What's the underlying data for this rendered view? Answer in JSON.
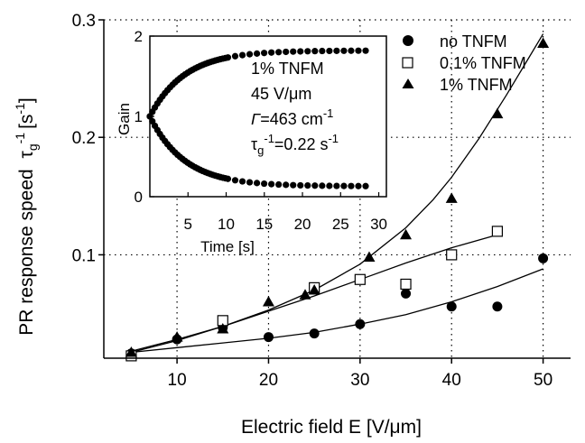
{
  "chart_data": [
    {
      "type": "scatter",
      "xlabel": "Electric field E [V/μm]",
      "ylabel": "PR response speed",
      "ylabel_symbol": "τ",
      "ylabel_sub": "g",
      "ylabel_sup": "-1",
      "ylabel_unit_pre": "[s",
      "ylabel_unit_sup": "-1",
      "ylabel_unit_post": "]",
      "xlim": [
        2,
        53
      ],
      "ylim": [
        0.012,
        0.3
      ],
      "xticks": [
        10,
        20,
        30,
        40,
        50
      ],
      "yticks": [
        0.1,
        0.2,
        0.3
      ],
      "grid": "dotted",
      "legend_position": "top-right",
      "series": [
        {
          "name": "no TNFM",
          "marker": "filled-circle",
          "x": [
            5,
            10,
            15,
            20,
            25,
            30,
            35,
            40,
            45,
            50
          ],
          "y": [
            0.016,
            0.028,
            0.038,
            0.03,
            0.033,
            0.041,
            0.067,
            0.056,
            0.056,
            0.097
          ],
          "fit_x": [
            5,
            10,
            15,
            20,
            25,
            30,
            35,
            40,
            45,
            50
          ],
          "fit_y": [
            0.017,
            0.021,
            0.025,
            0.029,
            0.034,
            0.041,
            0.049,
            0.06,
            0.073,
            0.088
          ]
        },
        {
          "name": "0.1% TNFM",
          "marker": "open-square",
          "x": [
            5,
            15,
            25,
            30,
            35,
            40,
            45
          ],
          "y": [
            0.014,
            0.044,
            0.072,
            0.079,
            0.075,
            0.1,
            0.12
          ],
          "fit_x": [
            5,
            10,
            15,
            20,
            25,
            30,
            35,
            40,
            45
          ],
          "fit_y": [
            0.018,
            0.028,
            0.039,
            0.052,
            0.065,
            0.079,
            0.093,
            0.106,
            0.117
          ]
        },
        {
          "name": "1% TNFM",
          "marker": "filled-triangle",
          "x": [
            5,
            10,
            15,
            20,
            24,
            25,
            31,
            35,
            40,
            45,
            50
          ],
          "y": [
            0.017,
            0.03,
            0.037,
            0.06,
            0.066,
            0.07,
            0.098,
            0.117,
            0.148,
            0.22,
            0.28
          ],
          "fit_x": [
            5,
            10,
            15,
            20,
            25,
            30,
            35,
            38,
            40,
            43,
            46,
            48,
            50
          ],
          "fit_y": [
            0.017,
            0.027,
            0.039,
            0.053,
            0.07,
            0.092,
            0.123,
            0.147,
            0.166,
            0.199,
            0.236,
            0.262,
            0.288
          ]
        }
      ]
    },
    {
      "type": "scatter",
      "inset": true,
      "xlabel": "Time [s]",
      "ylabel": "Gain",
      "xlim": [
        0,
        31
      ],
      "ylim": [
        0,
        2
      ],
      "xticks": [
        5,
        10,
        15,
        20,
        25,
        30
      ],
      "yticks": [
        0,
        1,
        2
      ],
      "series": [
        {
          "name": "upper",
          "marker": "filled-circle",
          "tau": 4.55,
          "start": 1,
          "end": 1.82
        },
        {
          "name": "lower",
          "marker": "filled-circle",
          "tau": 4.55,
          "start": 1,
          "end": 0.13
        }
      ],
      "annotation": {
        "line1": "1% TNFM",
        "line2": "45 V/μm",
        "line3_sym": "Γ",
        "line3_rest": "=463 cm",
        "line3_sup": "-1",
        "line4_sym": "τ",
        "line4_sub": "g",
        "line4_sup": "-1",
        "line4_rest": "=0.22 s",
        "line4_sup2": "-1"
      }
    }
  ]
}
